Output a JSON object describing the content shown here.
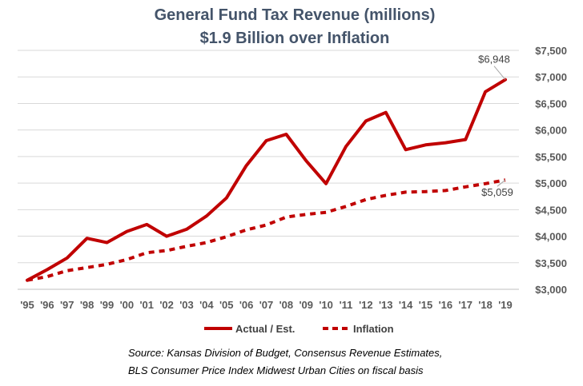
{
  "colors": {
    "series": "#c00000",
    "title": "#44546a",
    "grid": "#d9d9d9",
    "text": "#404040"
  },
  "chart_data": {
    "type": "line",
    "title": "General Fund Tax Revenue (millions)",
    "subtitle": "$1.9 Billion over Inflation",
    "categories": [
      "'95",
      "'96",
      "'97",
      "'98",
      "'99",
      "'00",
      "'01",
      "'02",
      "'03",
      "'04",
      "'05",
      "'06",
      "'07",
      "'08",
      "'09",
      "'10",
      "'11",
      "'12",
      "'13",
      "'14",
      "'15",
      "'16",
      "'17",
      "'18",
      "'19"
    ],
    "series": [
      {
        "name": "Actual / Est.",
        "style": "solid",
        "values": [
          3170,
          3370,
          3590,
          3960,
          3880,
          4090,
          4220,
          4000,
          4130,
          4380,
          4720,
          5330,
          5800,
          5920,
          5420,
          4990,
          5690,
          6170,
          6330,
          5630,
          5720,
          5760,
          5820,
          6720,
          6948
        ]
      },
      {
        "name": "Inflation",
        "style": "dashed",
        "values": [
          3170,
          3240,
          3350,
          3410,
          3470,
          3560,
          3690,
          3730,
          3810,
          3880,
          3990,
          4120,
          4210,
          4360,
          4410,
          4450,
          4560,
          4690,
          4770,
          4830,
          4840,
          4860,
          4930,
          4990,
          5059
        ]
      }
    ],
    "ylim": [
      3000,
      7500
    ],
    "yticks": [
      "$3,000",
      "$3,500",
      "$4,000",
      "$4,500",
      "$5,000",
      "$5,500",
      "$6,000",
      "$6,500",
      "$7,000",
      "$7,500"
    ],
    "ytick_values": [
      3000,
      3500,
      4000,
      4500,
      5000,
      5500,
      6000,
      6500,
      7000,
      7500
    ],
    "y_axis_side": "right",
    "grid": true,
    "legend_position": "bottom",
    "annotations": [
      {
        "text": "$6,948",
        "series": 0,
        "index": 24
      },
      {
        "text": "$5,059",
        "series": 1,
        "index": 24
      }
    ],
    "source": [
      "Source: Kansas Division of Budget, Consensus Revenue Estimates,",
      "BLS Consumer Price Index Midwest Urban Cities on fiscal basis"
    ]
  }
}
